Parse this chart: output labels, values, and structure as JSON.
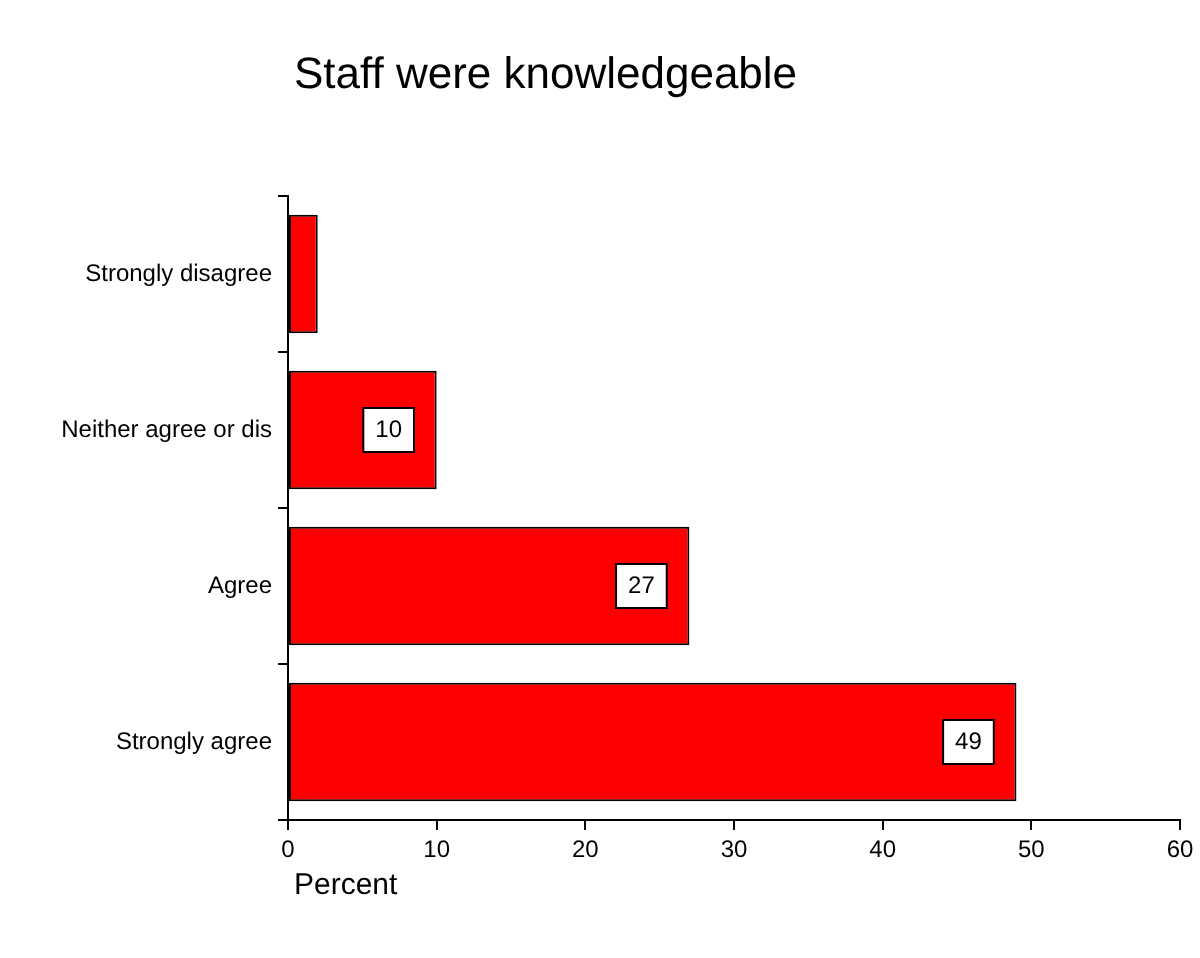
{
  "chart_data": {
    "type": "bar",
    "orientation": "horizontal",
    "title": "Staff were knowledgeable",
    "xlabel": "Percent",
    "categories": [
      "Strongly disagree",
      "Neither agree or dis",
      "Agree",
      "Strongly agree"
    ],
    "values": [
      2,
      10,
      27,
      49
    ],
    "value_labels": [
      null,
      "10",
      "27",
      "49"
    ],
    "color": "#ff0000",
    "xlim": [
      0,
      60
    ],
    "xticks": [
      0,
      10,
      20,
      30,
      40,
      50,
      60
    ],
    "grid": false,
    "legend": false
  }
}
